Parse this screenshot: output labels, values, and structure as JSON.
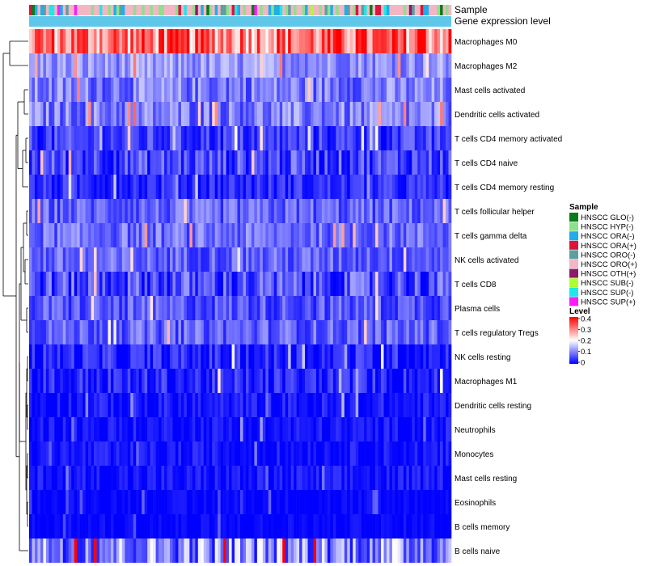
{
  "chart_data": {
    "type": "heatmap",
    "title": "",
    "annotation_tracks": [
      "Sample",
      "Gene expression level"
    ],
    "rows": [
      {
        "name": "Macrophages M0",
        "mean": 0.3,
        "spread": 0.22
      },
      {
        "name": "Macrophages M2",
        "mean": 0.11,
        "spread": 0.1
      },
      {
        "name": "Mast cells activated",
        "mean": 0.09,
        "spread": 0.12
      },
      {
        "name": "Dendritic cells activated",
        "mean": 0.09,
        "spread": 0.12
      },
      {
        "name": "T cells CD4 memory activated",
        "mean": 0.04,
        "spread": 0.1
      },
      {
        "name": "T cells CD4 naive",
        "mean": 0.05,
        "spread": 0.12
      },
      {
        "name": "T cells CD4 memory resting",
        "mean": 0.03,
        "spread": 0.08
      },
      {
        "name": "T cells follicular helper",
        "mean": 0.07,
        "spread": 0.1
      },
      {
        "name": "T cells gamma delta",
        "mean": 0.08,
        "spread": 0.1
      },
      {
        "name": "NK cells activated",
        "mean": 0.07,
        "spread": 0.1
      },
      {
        "name": "T cells CD8",
        "mean": 0.05,
        "spread": 0.14
      },
      {
        "name": "Plasma cells",
        "mean": 0.06,
        "spread": 0.1
      },
      {
        "name": "T cells regulatory  Tregs",
        "mean": 0.07,
        "spread": 0.1
      },
      {
        "name": "NK cells resting",
        "mean": 0.02,
        "spread": 0.1
      },
      {
        "name": "Macrophages M1",
        "mean": 0.02,
        "spread": 0.1
      },
      {
        "name": "Dendritic cells resting",
        "mean": 0.01,
        "spread": 0.07
      },
      {
        "name": "Neutrophils",
        "mean": 0.01,
        "spread": 0.06
      },
      {
        "name": "Monocytes",
        "mean": 0.01,
        "spread": 0.06
      },
      {
        "name": "Mast cells resting",
        "mean": 0.01,
        "spread": 0.06
      },
      {
        "name": "Eosinophils",
        "mean": 0.0,
        "spread": 0.04
      },
      {
        "name": "B cells memory",
        "mean": 0.0,
        "spread": 0.04
      },
      {
        "name": "B cells naive",
        "mean": 0.1,
        "spread": 0.2
      }
    ],
    "n_samples": 150,
    "sample_pattern": [
      "HNSCC ORO(+)",
      "HNSCC ORO(-)",
      "HNSCC ORA(-)",
      "HNSCC ORO(+)",
      "HNSCC SUP(-)",
      "HNSCC ORO(+)",
      "HNSCC ORA(+)",
      "HNSCC ORO(-)",
      "HNSCC ORA(-)",
      "HNSCC ORO(+)",
      "HNSCC HYP(-)",
      "HNSCC SUP(-)",
      "HNSCC ORO(+)",
      "HNSCC OTH(+)",
      "HNSCC ORA(-)",
      "HNSCC ORO(-)",
      "HNSCC SUB(-)",
      "HNSCC ORO(+)",
      "HNSCC SUP(+)",
      "HNSCC ORA(-)",
      "HNSCC GLO(-)"
    ],
    "legend_sample": {
      "title": "Sample",
      "entries": [
        {
          "label": "HNSCC GLO(-)",
          "color": "#0a7a1a"
        },
        {
          "label": "HNSCC HYP(-)",
          "color": "#8ee08e"
        },
        {
          "label": "HNSCC ORA(-)",
          "color": "#1eaeea"
        },
        {
          "label": "HNSCC ORA(+)",
          "color": "#dc143c"
        },
        {
          "label": "HNSCC ORO(-)",
          "color": "#5f9ea0"
        },
        {
          "label": "HNSCC ORO(+)",
          "color": "#f4b6c2"
        },
        {
          "label": "HNSCC OTH(+)",
          "color": "#8b1a6b"
        },
        {
          "label": "HNSCC SUB(-)",
          "color": "#adff2f"
        },
        {
          "label": "HNSCC SUP(-)",
          "color": "#1ee8e8"
        },
        {
          "label": "HNSCC SUP(+)",
          "color": "#ff1aff"
        }
      ]
    },
    "legend_level": {
      "title": "Level",
      "ticks": [
        "0.4",
        "0.3",
        "0.2",
        "0.1",
        "0"
      ],
      "range": [
        0,
        0.4
      ],
      "color_low": "#0000ff",
      "color_mid": "#ffffff",
      "color_high": "#ff0000"
    },
    "gene_expression_color": "#5fc8ea"
  }
}
